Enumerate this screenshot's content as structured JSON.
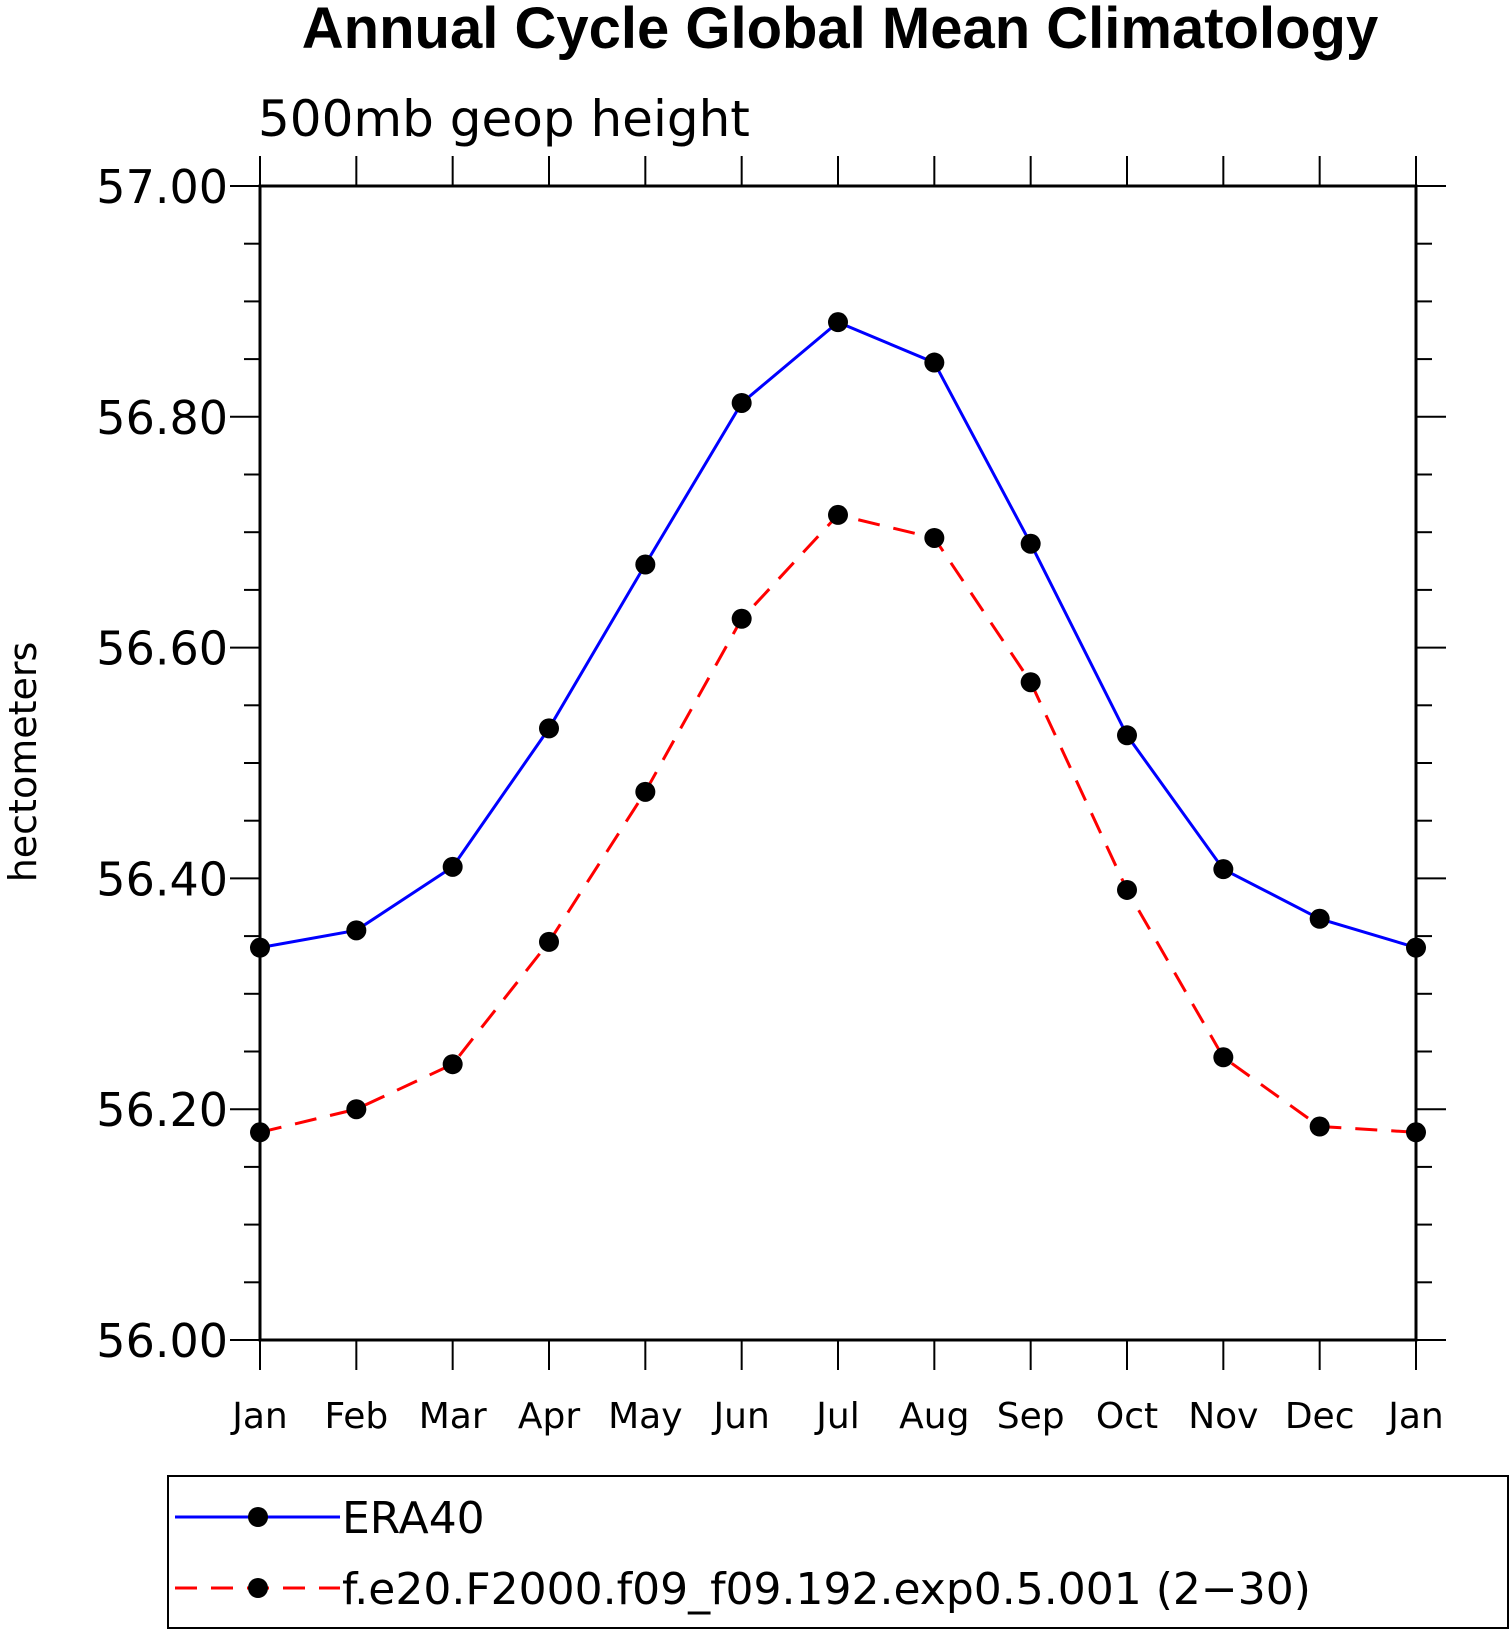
{
  "chart_data": {
    "type": "line",
    "title": "Annual Cycle Global Mean Climatology",
    "subtitle": "500mb geop height",
    "ylabel": "hectometers",
    "xlabel": "",
    "categories": [
      "Jan",
      "Feb",
      "Mar",
      "Apr",
      "May",
      "Jun",
      "Jul",
      "Aug",
      "Sep",
      "Oct",
      "Nov",
      "Dec",
      "Jan"
    ],
    "ylim": [
      56.0,
      57.0
    ],
    "yticks": [
      "56.00",
      "56.20",
      "56.40",
      "56.60",
      "56.80",
      "57.00"
    ],
    "grid": false,
    "legend_position": "bottom",
    "series": [
      {
        "name": "ERA40",
        "color": "#0000ff",
        "line_style": "solid",
        "marker": "filled-circle",
        "values": [
          56.34,
          56.355,
          56.41,
          56.53,
          56.672,
          56.812,
          56.882,
          56.847,
          56.69,
          56.524,
          56.408,
          56.365,
          56.34
        ]
      },
      {
        "name": "f.e20.F2000.f09_f09.192.exp0.5.001 (2−30)",
        "color": "#ff0000",
        "line_style": "dashed",
        "marker": "filled-circle",
        "values": [
          56.18,
          56.2,
          56.239,
          56.345,
          56.475,
          56.625,
          56.715,
          56.695,
          56.57,
          56.39,
          56.245,
          56.185,
          56.18
        ]
      }
    ]
  }
}
